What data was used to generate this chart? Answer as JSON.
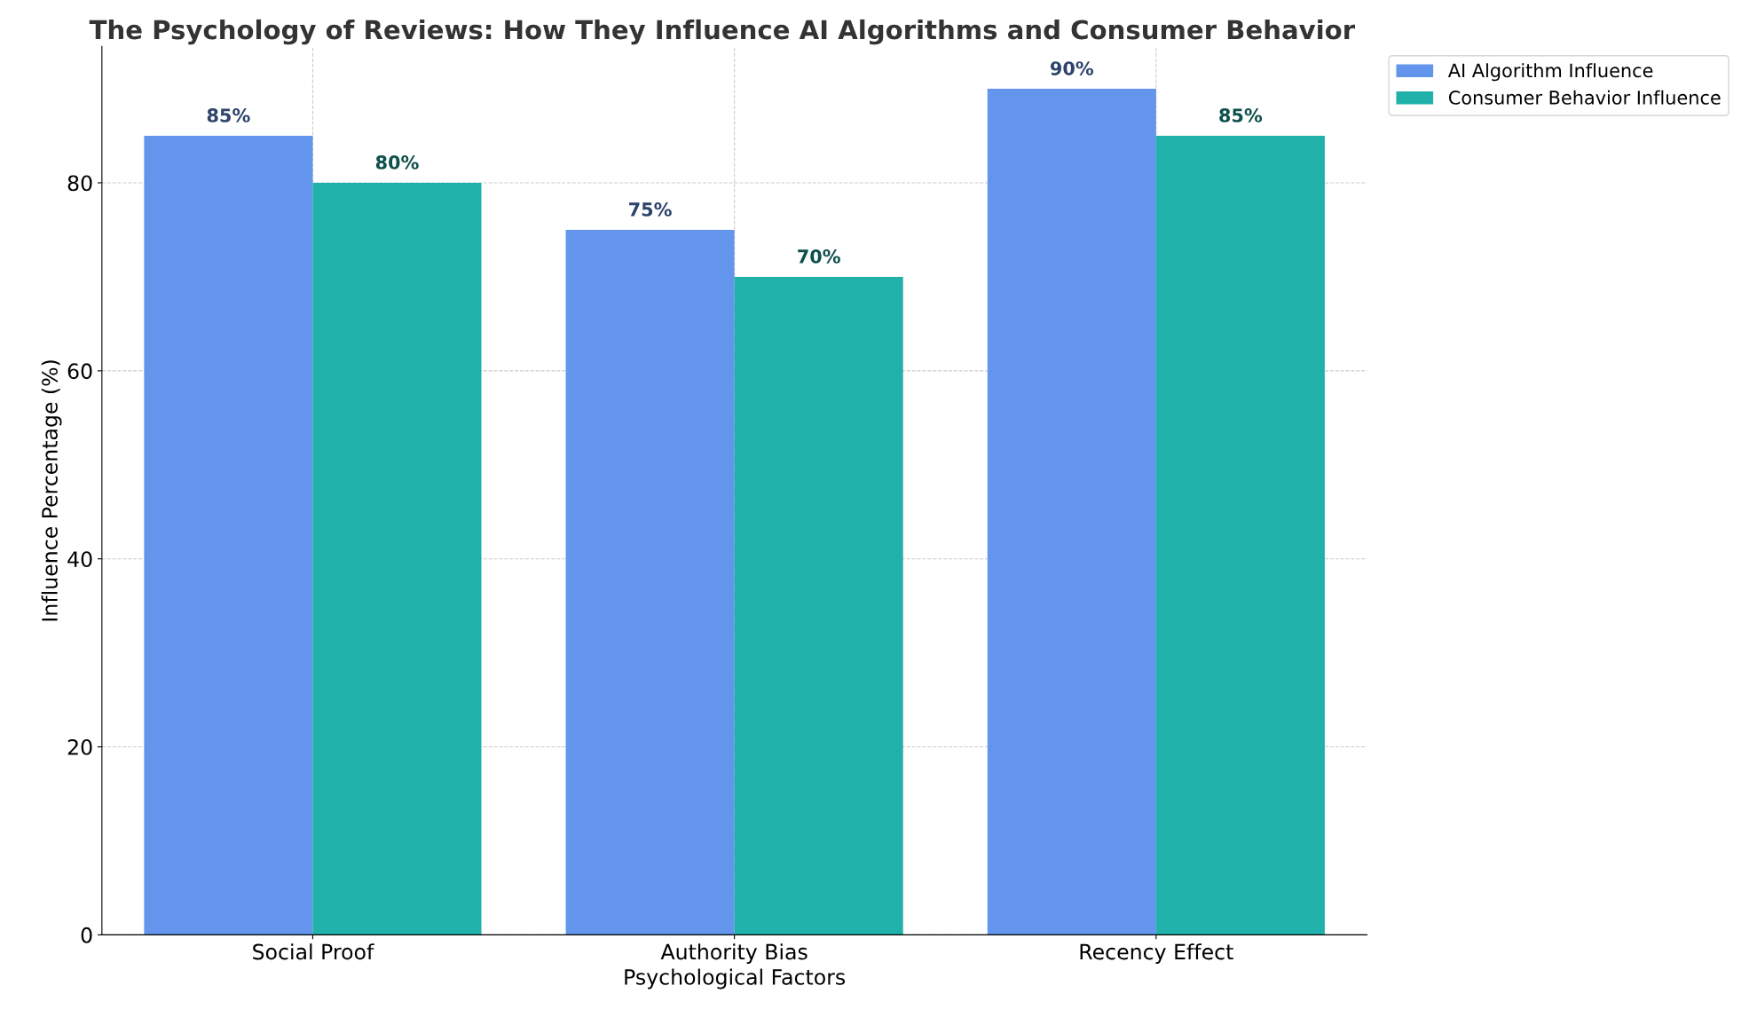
{
  "chart_data": {
    "type": "bar",
    "title": "The Psychology of Reviews: How They Influence AI Algorithms and Consumer Behavior",
    "xlabel": "Psychological Factors",
    "ylabel": "Influence Percentage (%)",
    "categories": [
      "Social Proof",
      "Authority Bias",
      "Recency Effect"
    ],
    "series": [
      {
        "name": "AI Algorithm Influence",
        "color": "#6495ed",
        "values": [
          85,
          75,
          90
        ],
        "value_labels": [
          "85%",
          "75%",
          "90%"
        ]
      },
      {
        "name": "Consumer Behavior Influence",
        "color": "#20b2aa",
        "values": [
          80,
          70,
          85
        ],
        "value_labels": [
          "80%",
          "70%",
          "85%"
        ]
      }
    ],
    "ylim": [
      0,
      94.5
    ],
    "yticks": [
      0,
      20,
      40,
      60,
      80
    ],
    "grid": true,
    "legend": "right"
  }
}
